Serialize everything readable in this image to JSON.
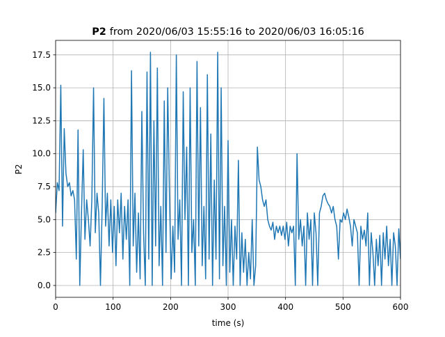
{
  "chart_data": {
    "type": "line",
    "title": {
      "bold": "P2",
      "text": "from 2020/06/03 15:55:16 to 2020/06/03 16:05:16"
    },
    "xlabel": "time (s)",
    "ylabel": "P2",
    "color": "#1f77b4",
    "grid": true,
    "xlim": [
      0,
      600
    ],
    "xticks": [
      0,
      100,
      200,
      300,
      400,
      500,
      600
    ],
    "ylim": [
      -0.9,
      18.6
    ],
    "yticks": [
      {
        "value": 0,
        "label": "0.0"
      },
      {
        "value": 2.5,
        "label": "2.5"
      },
      {
        "value": 5,
        "label": "5.0"
      },
      {
        "value": 7.5,
        "label": "7.5"
      },
      {
        "value": 10,
        "label": "10.0"
      },
      {
        "value": 12.5,
        "label": "12.5"
      },
      {
        "value": 15,
        "label": "15.0"
      },
      {
        "value": 17.5,
        "label": "17.5"
      }
    ],
    "x": [
      0,
      3,
      6,
      9,
      12,
      15,
      18,
      21,
      24,
      27,
      30,
      33,
      36,
      39,
      42,
      45,
      48,
      51,
      54,
      57,
      60,
      63,
      66,
      69,
      72,
      75,
      78,
      81,
      84,
      87,
      90,
      93,
      96,
      99,
      102,
      105,
      108,
      111,
      114,
      117,
      120,
      123,
      126,
      129,
      132,
      135,
      138,
      141,
      144,
      147,
      150,
      153,
      156,
      159,
      162,
      165,
      168,
      171,
      174,
      177,
      180,
      183,
      186,
      189,
      192,
      195,
      198,
      201,
      204,
      207,
      210,
      213,
      216,
      219,
      222,
      225,
      228,
      231,
      234,
      237,
      240,
      243,
      246,
      249,
      252,
      255,
      258,
      261,
      264,
      267,
      270,
      273,
      276,
      279,
      282,
      285,
      288,
      291,
      294,
      297,
      300,
      303,
      306,
      309,
      312,
      315,
      318,
      321,
      324,
      327,
      330,
      333,
      336,
      339,
      342,
      345,
      348,
      351,
      354,
      357,
      360,
      363,
      366,
      369,
      372,
      375,
      378,
      381,
      384,
      387,
      390,
      393,
      396,
      399,
      402,
      405,
      408,
      411,
      414,
      417,
      420,
      423,
      426,
      429,
      432,
      435,
      438,
      441,
      444,
      447,
      450,
      453,
      456,
      459,
      462,
      465,
      468,
      471,
      474,
      477,
      480,
      483,
      486,
      489,
      492,
      495,
      498,
      501,
      504,
      507,
      510,
      513,
      516,
      519,
      522,
      525,
      528,
      531,
      534,
      537,
      540,
      543,
      546,
      549,
      552,
      555,
      558,
      561,
      564,
      567,
      570,
      573,
      576,
      579,
      582,
      585,
      588,
      591,
      594,
      597,
      600
    ],
    "values": [
      5.5,
      7.8,
      7.2,
      15.2,
      4.5,
      11.9,
      8.5,
      7.5,
      7.8,
      6.8,
      7.2,
      6.5,
      2.0,
      11.8,
      0.0,
      5.5,
      10.3,
      3.5,
      6.5,
      5.0,
      3.0,
      6.5,
      15.0,
      4.0,
      7.0,
      5.5,
      0.0,
      6.0,
      14.2,
      4.5,
      7.0,
      3.0,
      6.5,
      2.5,
      6.0,
      1.5,
      6.5,
      4.0,
      7.0,
      2.0,
      6.0,
      3.5,
      6.5,
      0.0,
      16.3,
      3.0,
      7.0,
      1.0,
      5.5,
      0.5,
      13.2,
      4.0,
      0.0,
      16.2,
      2.0,
      17.7,
      0.0,
      12.5,
      3.0,
      16.5,
      1.5,
      6.0,
      0.0,
      14.0,
      2.5,
      15.0,
      7.0,
      0.5,
      4.5,
      1.0,
      17.5,
      3.5,
      6.5,
      0.0,
      14.7,
      5.0,
      10.5,
      0.0,
      15.0,
      2.5,
      5.0,
      0.0,
      17.0,
      3.0,
      13.5,
      1.5,
      6.0,
      0.5,
      16.0,
      2.0,
      11.5,
      0.0,
      8.0,
      2.0,
      17.7,
      0.5,
      15.0,
      1.5,
      6.0,
      0.0,
      11.0,
      1.0,
      5.0,
      0.0,
      4.5,
      2.0,
      9.5,
      0.0,
      4.0,
      1.0,
      3.5,
      0.0,
      2.5,
      0.5,
      5.0,
      0.0,
      1.5,
      10.5,
      8.0,
      7.5,
      6.5,
      6.0,
      6.5,
      5.0,
      4.5,
      4.2,
      4.8,
      3.5,
      4.5,
      4.0,
      4.5,
      3.8,
      4.5,
      3.5,
      4.8,
      3.0,
      4.5,
      4.0,
      4.5,
      0.0,
      10.0,
      3.5,
      5.0,
      3.0,
      4.5,
      0.0,
      5.5,
      3.5,
      5.0,
      0.0,
      5.5,
      4.0,
      0.0,
      5.5,
      6.0,
      6.8,
      7.0,
      6.5,
      6.2,
      6.0,
      5.5,
      6.0,
      5.0,
      4.5,
      2.0,
      5.0,
      4.8,
      5.5,
      5.0,
      5.8,
      5.2,
      4.5,
      3.0,
      5.0,
      4.5,
      4.0,
      0.0,
      4.5,
      3.5,
      4.2,
      3.0,
      5.5,
      0.0,
      4.0,
      2.5,
      0.0,
      3.5,
      1.5,
      3.8,
      0.0,
      4.0,
      2.0,
      4.5,
      1.5,
      3.5,
      0.0,
      4.0,
      3.0,
      0.0,
      4.3,
      2.0
    ]
  }
}
